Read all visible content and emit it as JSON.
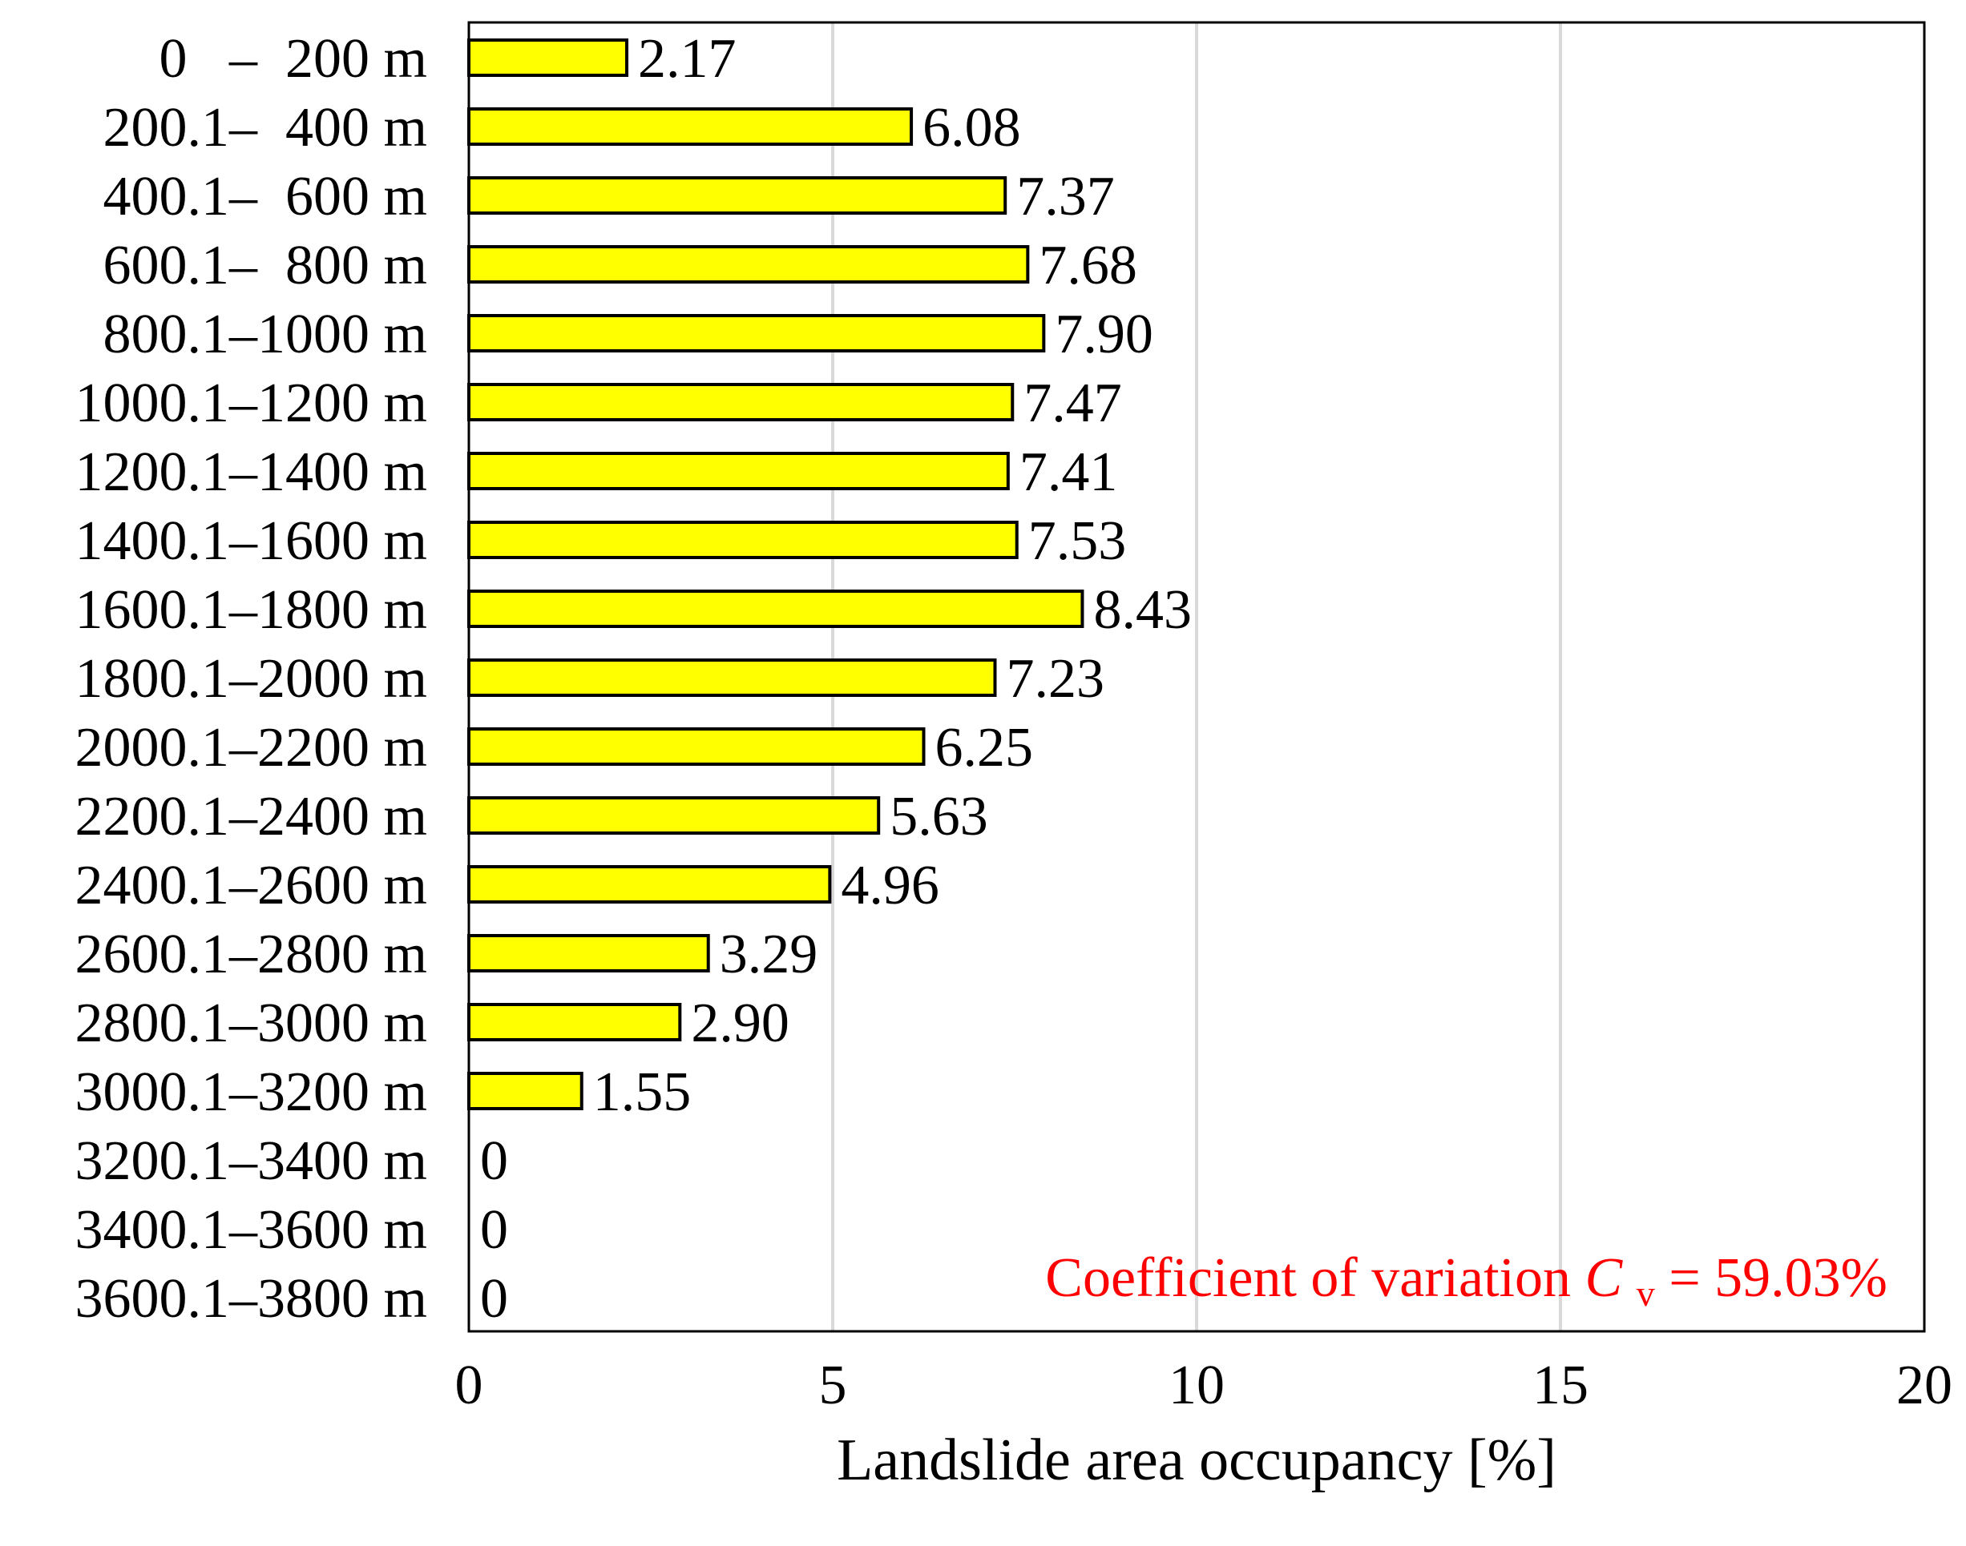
{
  "chart_data": {
    "type": "bar",
    "orientation": "horizontal",
    "categories": [
      "0   –  200 m",
      "200.1–  400 m",
      "400.1–  600 m",
      "600.1–  800 m",
      "800.1–1000 m",
      "1000.1–1200 m",
      "1200.1–1400 m",
      "1400.1–1600 m",
      "1600.1–1800 m",
      "1800.1–2000 m",
      "2000.1–2200 m",
      "2200.1–2400 m",
      "2400.1–2600 m",
      "2600.1–2800 m",
      "2800.1–3000 m",
      "3000.1–3200 m",
      "3200.1–3400 m",
      "3400.1–3600 m",
      "3600.1–3800 m"
    ],
    "values": [
      2.17,
      6.08,
      7.37,
      7.68,
      7.9,
      7.47,
      7.41,
      7.53,
      8.43,
      7.23,
      6.25,
      5.63,
      4.96,
      3.29,
      2.9,
      1.55,
      0,
      0,
      0
    ],
    "value_labels": [
      "2.17",
      "6.08",
      "7.37",
      "7.68",
      "7.90",
      "7.47",
      "7.41",
      "7.53",
      "8.43",
      "7.23",
      "6.25",
      "5.63",
      "4.96",
      "3.29",
      "2.90",
      "1.55",
      "0",
      "0",
      "0"
    ],
    "xlabel": "Landslide area occupancy [%]",
    "ylabel": "",
    "title": "",
    "xlim": [
      0,
      20
    ],
    "xticks": [
      0,
      5,
      10,
      15,
      20
    ],
    "grid": "vertical",
    "bar_color": "#ffff00",
    "bar_edge_color": "#000000",
    "grid_color": "#d9d9d9",
    "annotation": {
      "prefix": "Coefficient of variation ",
      "symbol": "C",
      "subscript": "v",
      "suffix": " = 59.03%",
      "color": "#ff0000",
      "position": "bottom-right"
    }
  }
}
